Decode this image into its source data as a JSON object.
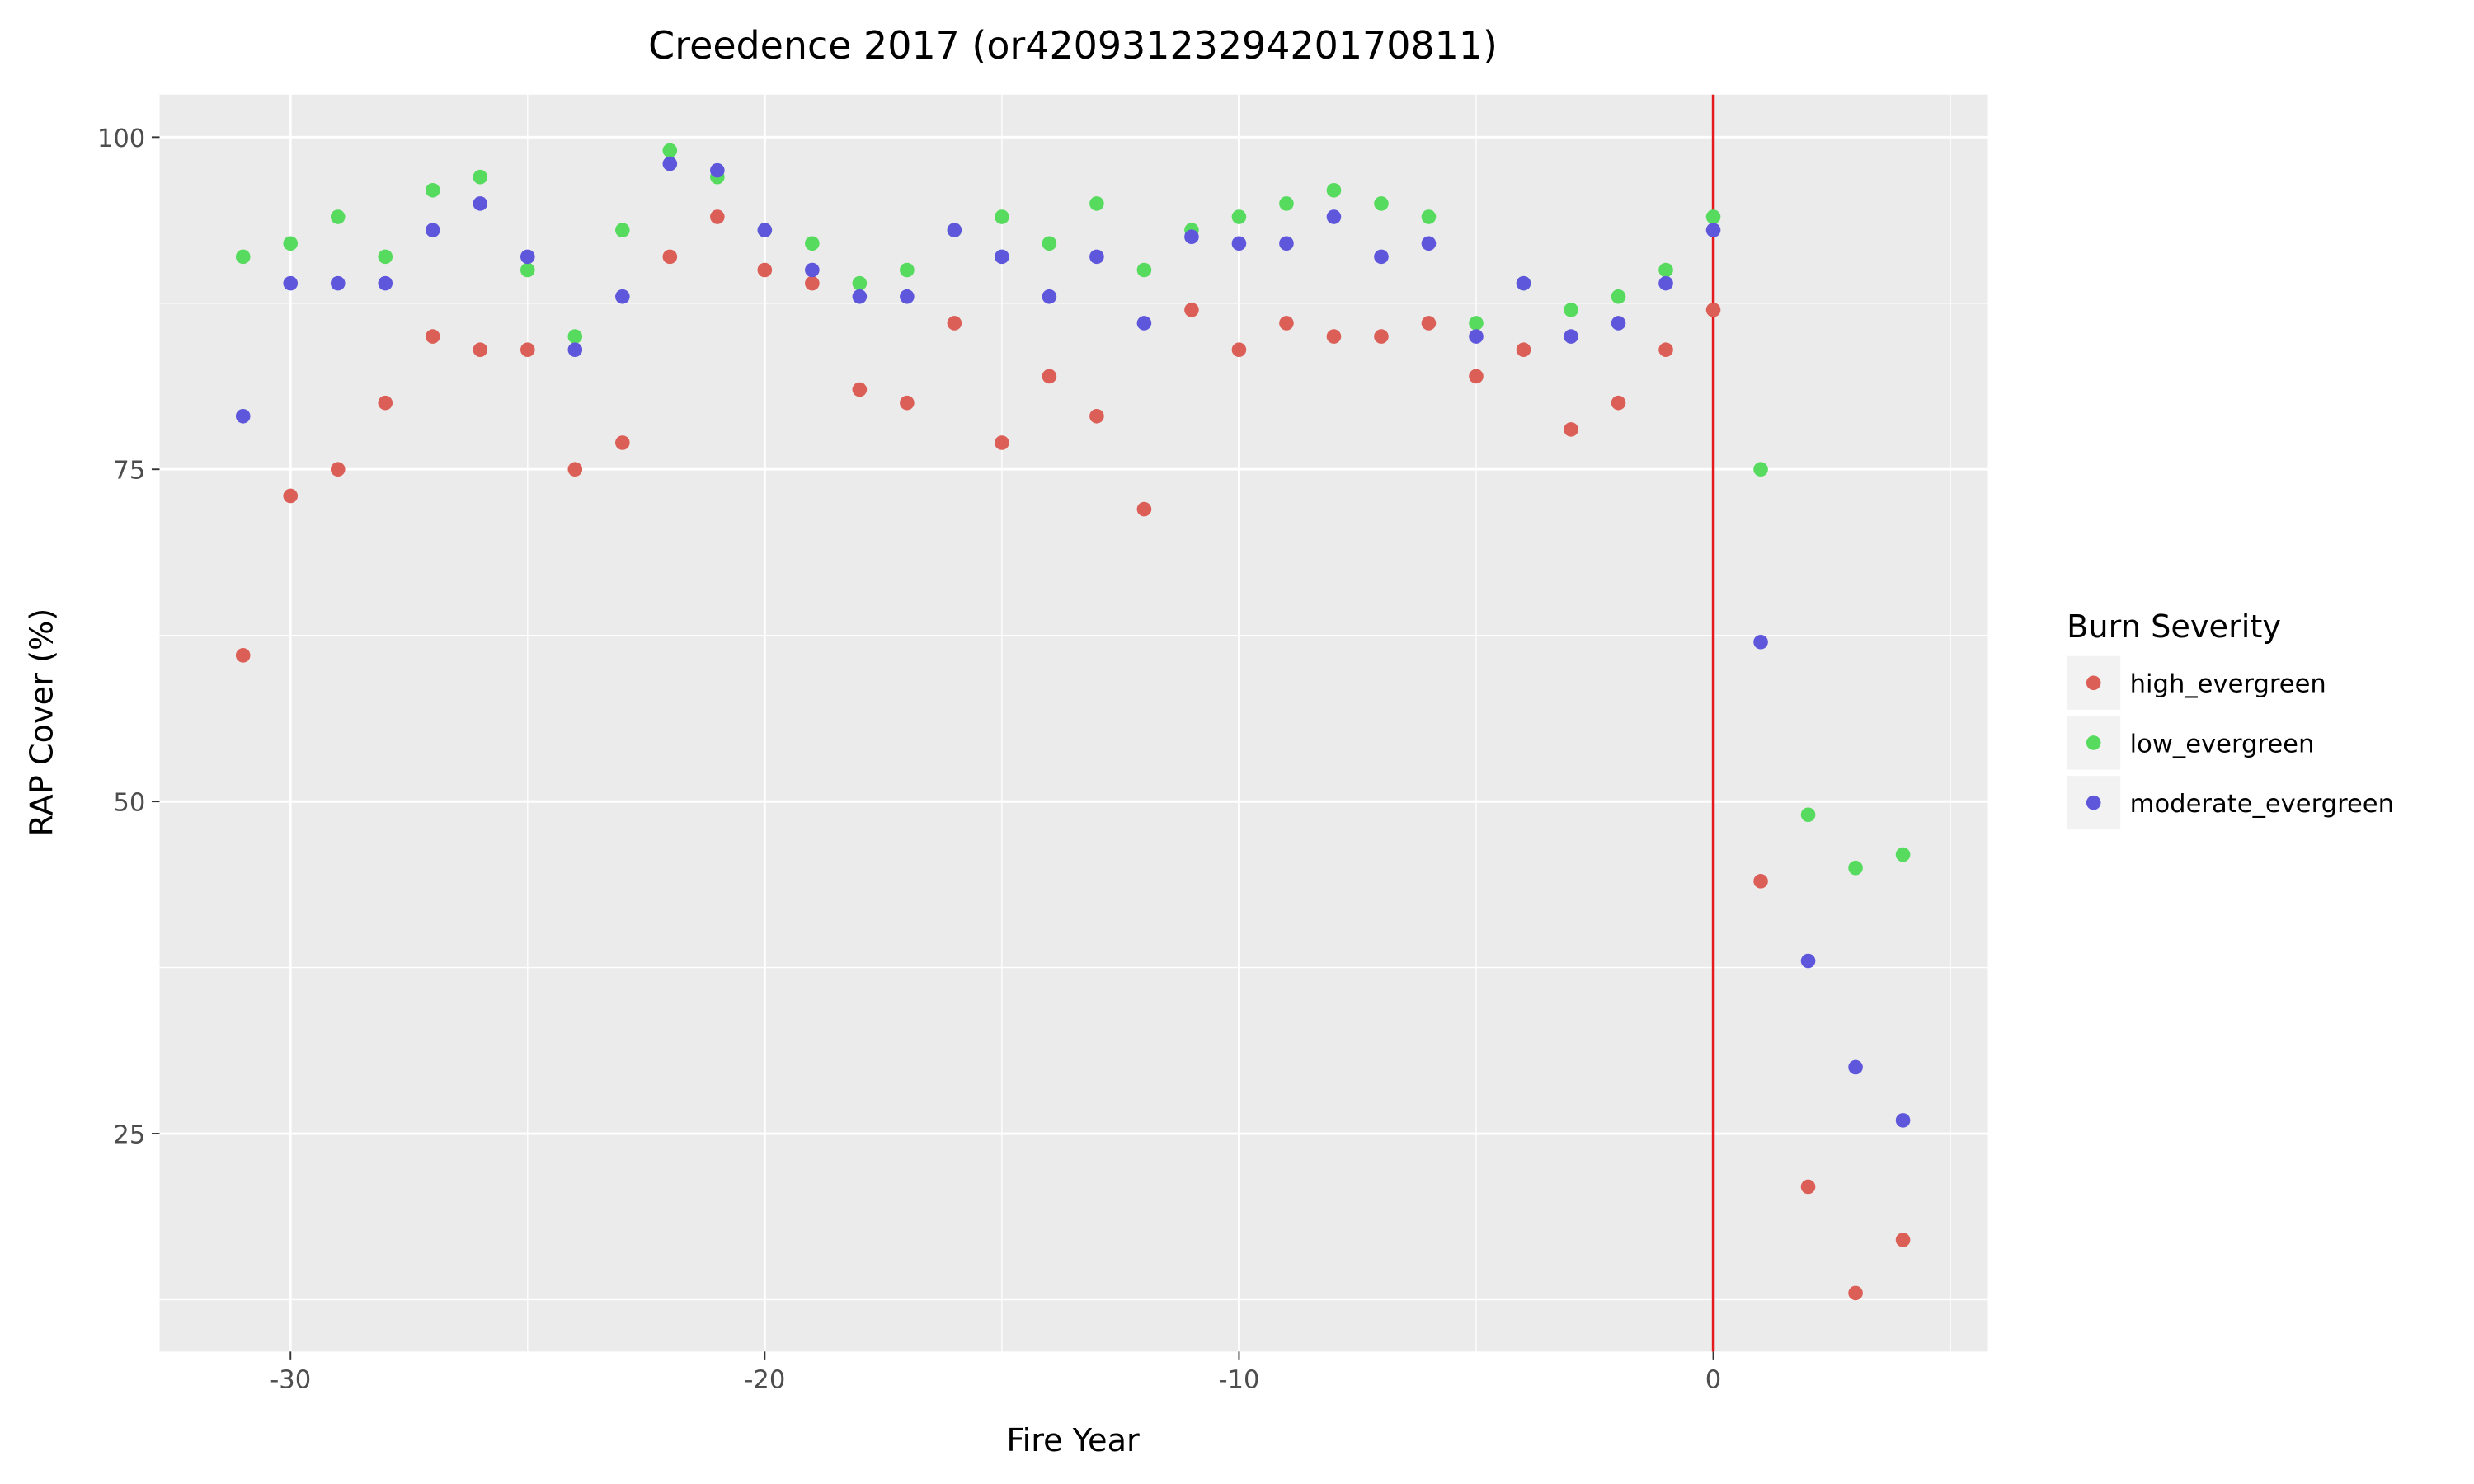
{
  "chart_data": {
    "type": "scatter",
    "title": "Creedence 2017 (or4209312329420170811)",
    "xlabel": "Fire Year",
    "ylabel": "RAP Cover (%)",
    "xlim": [
      -32.76,
      5.79
    ],
    "ylim": [
      8.6,
      103.2
    ],
    "xticks": [
      -30,
      -20,
      -10,
      0
    ],
    "yticks": [
      25,
      50,
      75,
      100
    ],
    "grid": true,
    "vline": {
      "x": 0,
      "color": "#e41a1c"
    },
    "legend": {
      "title": "Burn Severity",
      "placement": "right"
    },
    "x": [
      -31,
      -30,
      -29,
      -28,
      -27,
      -26,
      -25,
      -24,
      -23,
      -22,
      -21,
      -20,
      -19,
      -18,
      -17,
      -16,
      -15,
      -14,
      -13,
      -12,
      -11,
      -10,
      -9,
      -8,
      -7,
      -6,
      -5,
      -4,
      -3,
      -2,
      -1,
      0,
      1,
      2,
      3,
      4
    ],
    "series": [
      {
        "name": "high_evergreen",
        "color": "#db5f57",
        "values": [
          61,
          73,
          75,
          80,
          85,
          84,
          84,
          75,
          77,
          91,
          94,
          90,
          89,
          81,
          80,
          86,
          77,
          82,
          79,
          72,
          87,
          84,
          86,
          85,
          85,
          86,
          82,
          84,
          78,
          80,
          84,
          87,
          44,
          21,
          13,
          17
        ]
      },
      {
        "name": "low_evergreen",
        "color": "#57db5f",
        "values": [
          91,
          92,
          94,
          91,
          96,
          97,
          90,
          85,
          93,
          99,
          97,
          93,
          92,
          89,
          90,
          93,
          94,
          92,
          95,
          90,
          93,
          94,
          95,
          96,
          95,
          94,
          86,
          89,
          87,
          88,
          90,
          94,
          75,
          49,
          45,
          46
        ]
      },
      {
        "name": "moderate_evergreen",
        "color": "#5f57db",
        "values": [
          79,
          89,
          89,
          89,
          93,
          95,
          91,
          84,
          88,
          98,
          97.5,
          93,
          90,
          88,
          88,
          93,
          91,
          88,
          91,
          86,
          92.5,
          92,
          92,
          94,
          91,
          92,
          85,
          89,
          85,
          86,
          89,
          93,
          62,
          38,
          30,
          26
        ]
      }
    ]
  }
}
